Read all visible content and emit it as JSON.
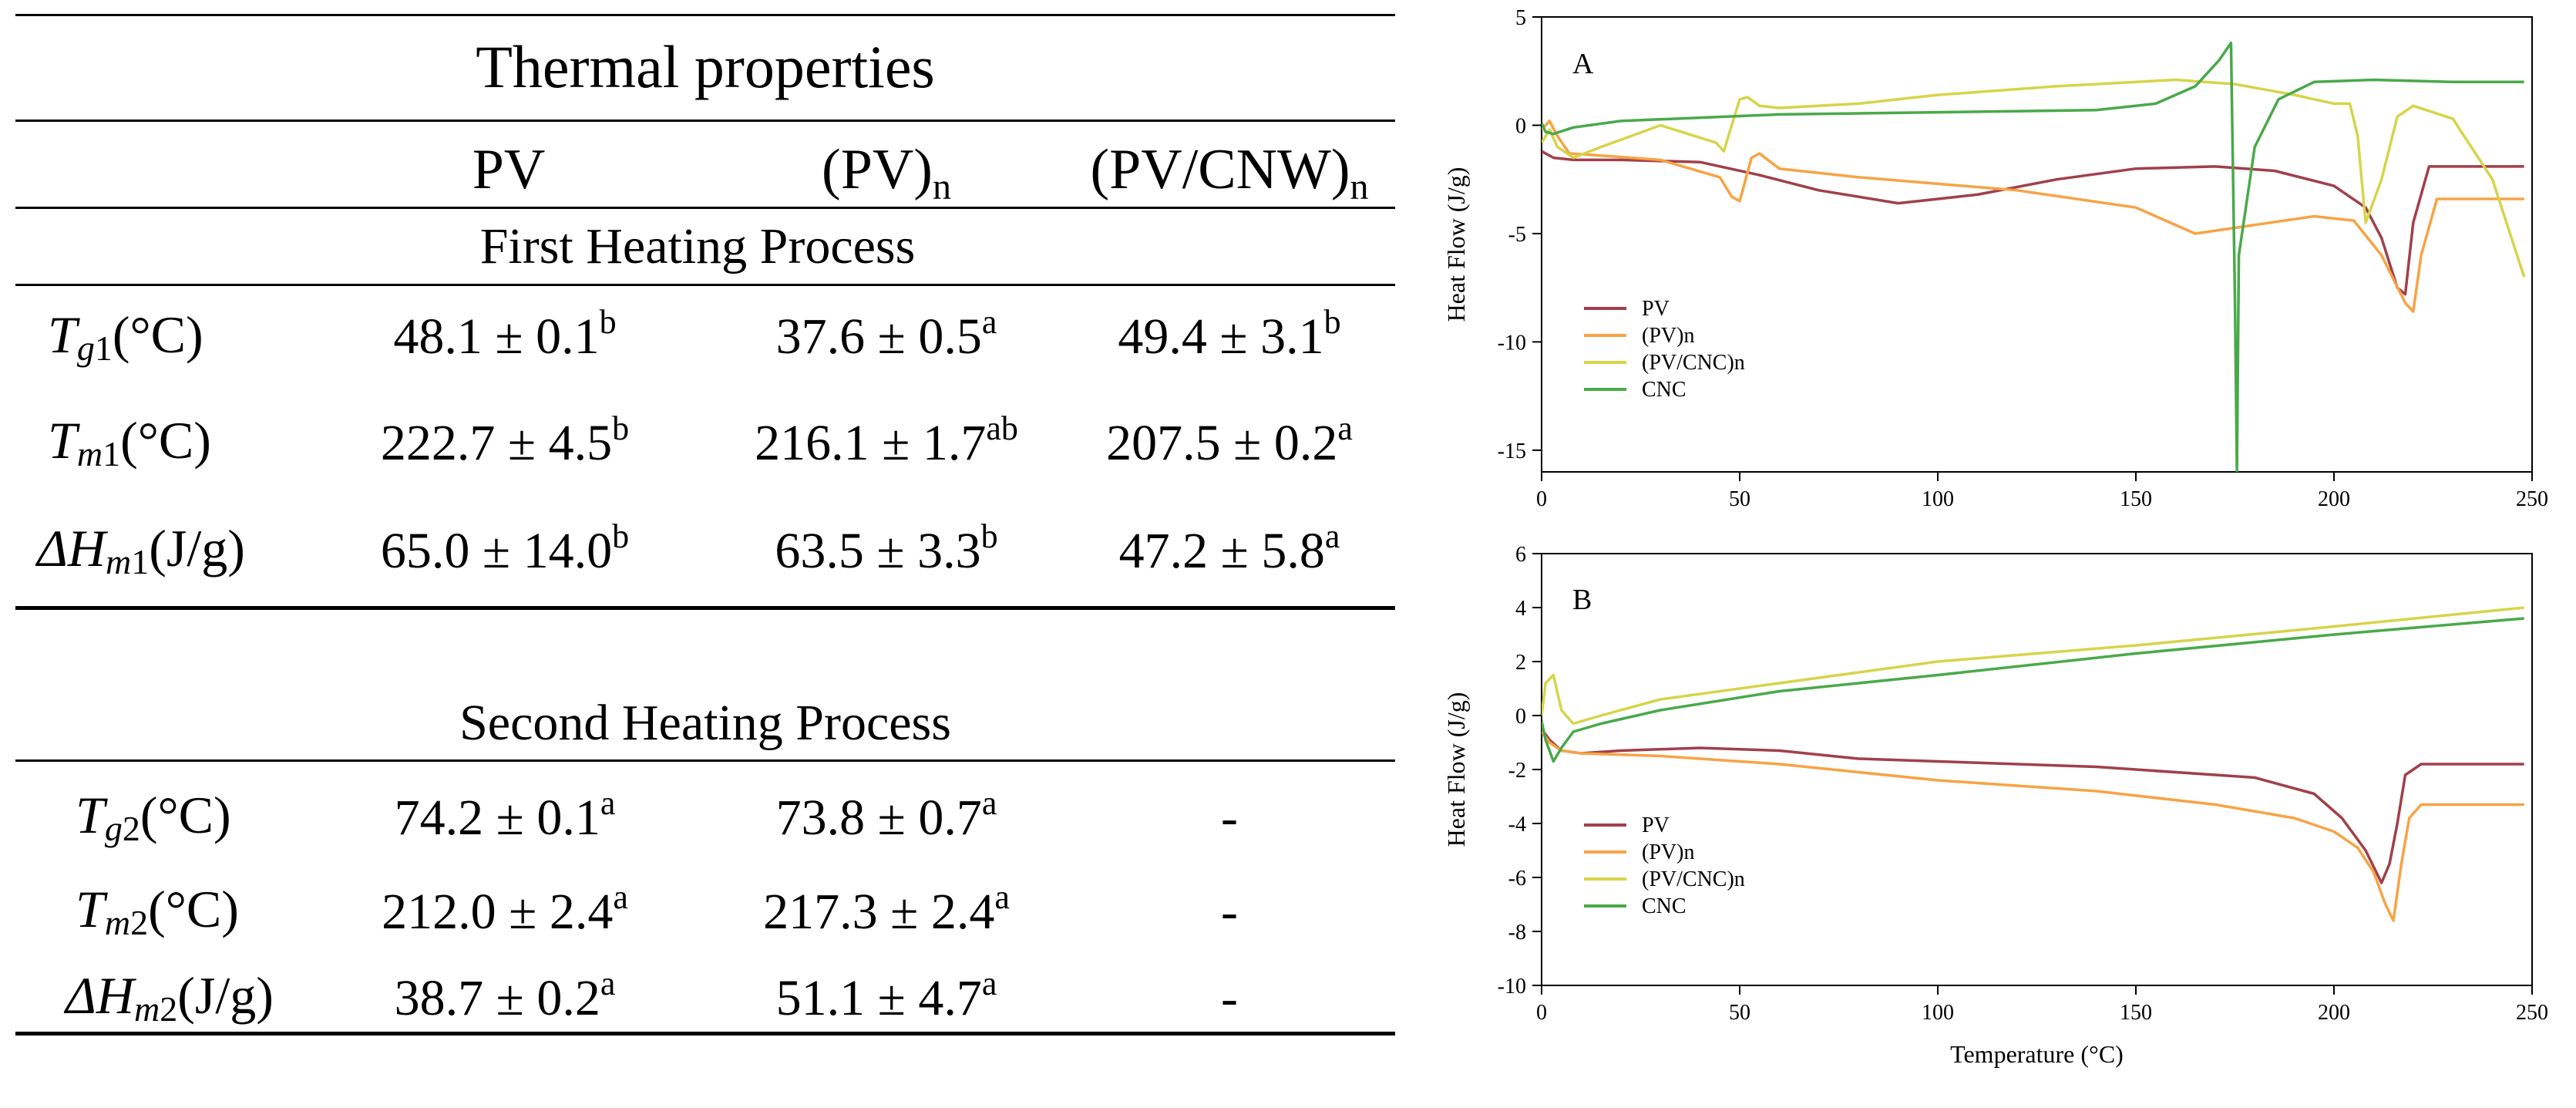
{
  "table": {
    "title": "Thermal properties",
    "headers": {
      "col1": "PV",
      "col2_base": "(PV)",
      "col2_sub": "n",
      "col3_base": "(PV/CNW)",
      "col3_sub": "n"
    },
    "sections": [
      {
        "label": "First Heating  Process",
        "rows": [
          {
            "symbol": "T",
            "sub": "g",
            "sub_num": "1",
            "unit": "(°C)",
            "cells": [
              {
                "v": "48.1 ± 0.1",
                "s": "b"
              },
              {
                "v": "37.6 ± 0.5",
                "s": "a"
              },
              {
                "v": "49.4 ± 3.1",
                "s": "b"
              }
            ]
          },
          {
            "symbol": "T",
            "sub": "m",
            "sub_num": "1",
            "unit": "(°C)",
            "cells": [
              {
                "v": "222.7 ± 4.5",
                "s": "b"
              },
              {
                "v": "216.1 ± 1.7",
                "s": "ab"
              },
              {
                "v": "207.5 ± 0.2",
                "s": "a"
              }
            ]
          },
          {
            "symbol": "ΔH",
            "sub": "m",
            "sub_num": "1",
            "unit": "(J/g)",
            "cells": [
              {
                "v": "65.0 ± 14.0",
                "s": "b"
              },
              {
                "v": "63.5 ± 3.3",
                "s": "b"
              },
              {
                "v": "47.2 ± 5.8",
                "s": "a"
              }
            ]
          }
        ]
      },
      {
        "label": "Second Heating  Process",
        "rows": [
          {
            "symbol": "T",
            "sub": "g",
            "sub_num": "2",
            "unit": "(°C)",
            "cells": [
              {
                "v": "74.2 ± 0.1",
                "s": "a"
              },
              {
                "v": "73.8 ± 0.7",
                "s": "a"
              },
              {
                "v": "-",
                "s": ""
              }
            ]
          },
          {
            "symbol": "T",
            "sub": "m",
            "sub_num": "2",
            "unit": "(°C)",
            "cells": [
              {
                "v": "212.0 ± 2.4",
                "s": "a"
              },
              {
                "v": "217.3 ± 2.4",
                "s": "a"
              },
              {
                "v": "-",
                "s": ""
              }
            ]
          },
          {
            "symbol": "ΔH",
            "sub": "m",
            "sub_num": "2",
            "unit": "(J/g)",
            "cells": [
              {
                "v": "38.7 ± 0.2",
                "s": "a"
              },
              {
                "v": "51.1 ± 4.7",
                "s": "a"
              },
              {
                "v": "-",
                "s": ""
              }
            ]
          }
        ]
      }
    ]
  },
  "colors": {
    "PV": "#a0404a",
    "(PV)n": "#f7a345",
    "(PV/CNC)n": "#d6d44a",
    "CNC": "#49a94a"
  },
  "chart_data": [
    {
      "type": "line",
      "panel_label": "A",
      "ylabel": "Heat Flow (J/g)",
      "xlabel": "",
      "xlim": [
        0,
        250
      ],
      "ylim": [
        -16,
        5
      ],
      "xticks": [
        0,
        50,
        100,
        150,
        200,
        250
      ],
      "yticks": [
        5,
        0,
        -5,
        -10,
        -15
      ],
      "legend": [
        "PV",
        "(PV)n",
        "(PV/CNC)n",
        "CNC"
      ],
      "series": [
        {
          "name": "PV",
          "x": [
            0,
            3,
            8,
            20,
            40,
            55,
            70,
            90,
            110,
            130,
            150,
            170,
            185,
            200,
            208,
            212,
            216,
            218,
            220,
            224,
            248
          ],
          "y": [
            -1.2,
            -1.5,
            -1.6,
            -1.6,
            -1.7,
            -2.3,
            -3.0,
            -3.6,
            -3.2,
            -2.5,
            -2.0,
            -1.9,
            -2.1,
            -2.8,
            -3.8,
            -5.2,
            -7.5,
            -7.8,
            -4.5,
            -1.9,
            -1.9
          ]
        },
        {
          "name": "(PV)n",
          "x": [
            0,
            2,
            4,
            7,
            15,
            30,
            45,
            48,
            50,
            53,
            55,
            60,
            80,
            120,
            150,
            165,
            180,
            195,
            205,
            212,
            218,
            220,
            222,
            226,
            248
          ],
          "y": [
            -0.2,
            0.2,
            -0.5,
            -1.3,
            -1.4,
            -1.6,
            -2.4,
            -3.3,
            -3.5,
            -1.5,
            -1.3,
            -2.0,
            -2.4,
            -3.0,
            -3.8,
            -5.0,
            -4.6,
            -4.2,
            -4.4,
            -6.0,
            -8.2,
            -8.6,
            -6.0,
            -3.4,
            -3.4
          ]
        },
        {
          "name": "(PV/CNC)n",
          "x": [
            0,
            2,
            4,
            8,
            15,
            30,
            44,
            46,
            48,
            50,
            52,
            55,
            60,
            80,
            100,
            130,
            160,
            175,
            190,
            200,
            204,
            206,
            208,
            212,
            216,
            220,
            230,
            240,
            248
          ],
          "y": [
            -0.8,
            -0.2,
            -1.0,
            -1.5,
            -1.0,
            0.0,
            -0.8,
            -1.2,
            0.0,
            1.2,
            1.3,
            0.9,
            0.8,
            1.0,
            1.4,
            1.8,
            2.1,
            1.9,
            1.4,
            1.0,
            1.0,
            -0.5,
            -4.5,
            -2.5,
            0.4,
            0.9,
            0.3,
            -2.5,
            -7.0
          ]
        },
        {
          "name": "CNC",
          "x": [
            0,
            1,
            3,
            8,
            20,
            60,
            100,
            140,
            155,
            165,
            171,
            174,
            175,
            175.5,
            176,
            180,
            186,
            195,
            210,
            230,
            248
          ],
          "y": [
            0.1,
            -0.3,
            -0.4,
            -0.1,
            0.2,
            0.5,
            0.6,
            0.7,
            1.0,
            1.8,
            3.0,
            3.8,
            -8.0,
            -16.0,
            -6.0,
            -1.0,
            1.2,
            2.0,
            2.1,
            2.0,
            2.0
          ]
        }
      ]
    },
    {
      "type": "line",
      "panel_label": "B",
      "ylabel": "Heat Flow (J/g)",
      "xlabel": "Temperature (°C)",
      "xlim": [
        0,
        250
      ],
      "ylim": [
        -10,
        6
      ],
      "xticks": [
        0,
        50,
        100,
        150,
        200,
        250
      ],
      "yticks": [
        6,
        4,
        2,
        0,
        -2,
        -4,
        -6,
        -8,
        -10
      ],
      "legend": [
        "PV",
        "(PV)n",
        "(PV/CNC)n",
        "CNC"
      ],
      "series": [
        {
          "name": "PV",
          "x": [
            0,
            2,
            5,
            10,
            20,
            40,
            60,
            80,
            100,
            140,
            180,
            195,
            202,
            208,
            212,
            214,
            216,
            218,
            222,
            248
          ],
          "y": [
            -0.5,
            -0.9,
            -1.3,
            -1.4,
            -1.3,
            -1.2,
            -1.3,
            -1.6,
            -1.7,
            -1.9,
            -2.3,
            -2.9,
            -3.8,
            -5.0,
            -6.2,
            -5.5,
            -4.0,
            -2.2,
            -1.8,
            -1.8
          ]
        },
        {
          "name": "(PV)n",
          "x": [
            0,
            2,
            5,
            10,
            30,
            60,
            100,
            140,
            170,
            190,
            200,
            206,
            210,
            213,
            215,
            217,
            219,
            222,
            226,
            248
          ],
          "y": [
            -0.6,
            -1.0,
            -1.3,
            -1.4,
            -1.5,
            -1.8,
            -2.4,
            -2.8,
            -3.3,
            -3.8,
            -4.3,
            -4.9,
            -5.8,
            -7.0,
            -7.6,
            -5.5,
            -3.8,
            -3.3,
            -3.3,
            -3.3
          ]
        },
        {
          "name": "(PV/CNC)n",
          "x": [
            0,
            1,
            3,
            5,
            8,
            15,
            30,
            60,
            100,
            150,
            200,
            248
          ],
          "y": [
            0.0,
            1.2,
            1.5,
            0.2,
            -0.3,
            0.0,
            0.6,
            1.2,
            2.0,
            2.6,
            3.3,
            4.0
          ]
        },
        {
          "name": "CNC",
          "x": [
            0,
            1,
            3,
            5,
            8,
            15,
            30,
            60,
            100,
            150,
            200,
            248
          ],
          "y": [
            -0.2,
            -0.9,
            -1.7,
            -1.2,
            -0.6,
            -0.3,
            0.2,
            0.9,
            1.5,
            2.3,
            3.0,
            3.6
          ]
        }
      ]
    }
  ]
}
